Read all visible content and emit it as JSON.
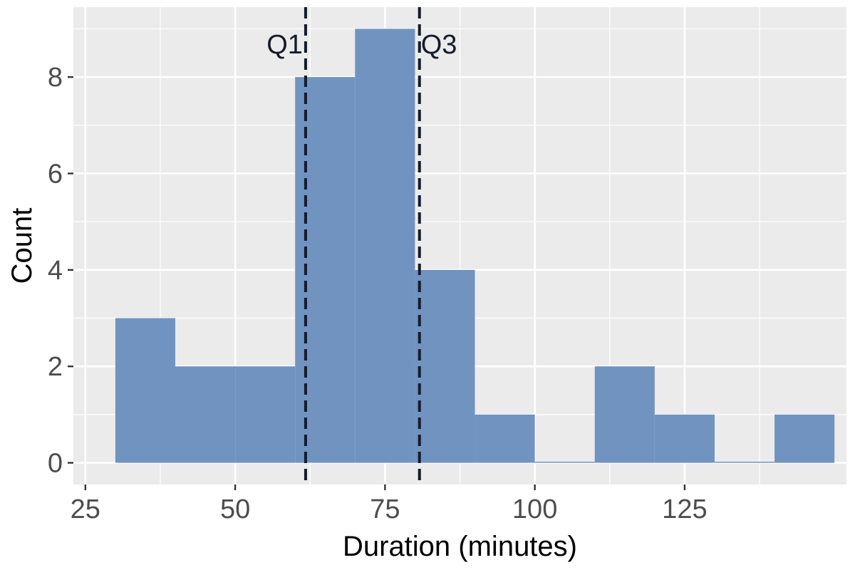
{
  "chart_data": {
    "type": "bar",
    "variant": "histogram",
    "xlabel": "Duration (minutes)",
    "ylabel": "Count",
    "xlim": [
      23,
      152
    ],
    "ylim": [
      -0.45,
      9.45
    ],
    "x_ticks": [
      25,
      50,
      75,
      100,
      125
    ],
    "x_tick_labels": [
      "25",
      "50",
      "75",
      "100",
      "125"
    ],
    "y_ticks": [
      0,
      2,
      4,
      6,
      8
    ],
    "y_tick_labels": [
      "0",
      "2",
      "4",
      "6",
      "8"
    ],
    "grid": true,
    "bins": [
      {
        "x0": 30,
        "x1": 40,
        "count": 3
      },
      {
        "x0": 40,
        "x1": 50,
        "count": 2
      },
      {
        "x0": 50,
        "x1": 60,
        "count": 2
      },
      {
        "x0": 60,
        "x1": 70,
        "count": 8
      },
      {
        "x0": 70,
        "x1": 80,
        "count": 9
      },
      {
        "x0": 80,
        "x1": 90,
        "count": 4
      },
      {
        "x0": 90,
        "x1": 100,
        "count": 1
      },
      {
        "x0": 100,
        "x1": 110,
        "count": 0
      },
      {
        "x0": 110,
        "x1": 120,
        "count": 2
      },
      {
        "x0": 120,
        "x1": 130,
        "count": 1
      },
      {
        "x0": 130,
        "x1": 140,
        "count": 0
      },
      {
        "x0": 140,
        "x1": 150,
        "count": 1
      }
    ],
    "reference_lines": [
      {
        "label": "Q1",
        "x": 61.75,
        "label_side": "left"
      },
      {
        "label": "Q3",
        "x": 80.75,
        "label_side": "right"
      }
    ],
    "colors": {
      "bar": "#7193bf",
      "panel": "#ebebeb",
      "grid": "#ffffff",
      "reference_line": "#141c2b"
    }
  }
}
